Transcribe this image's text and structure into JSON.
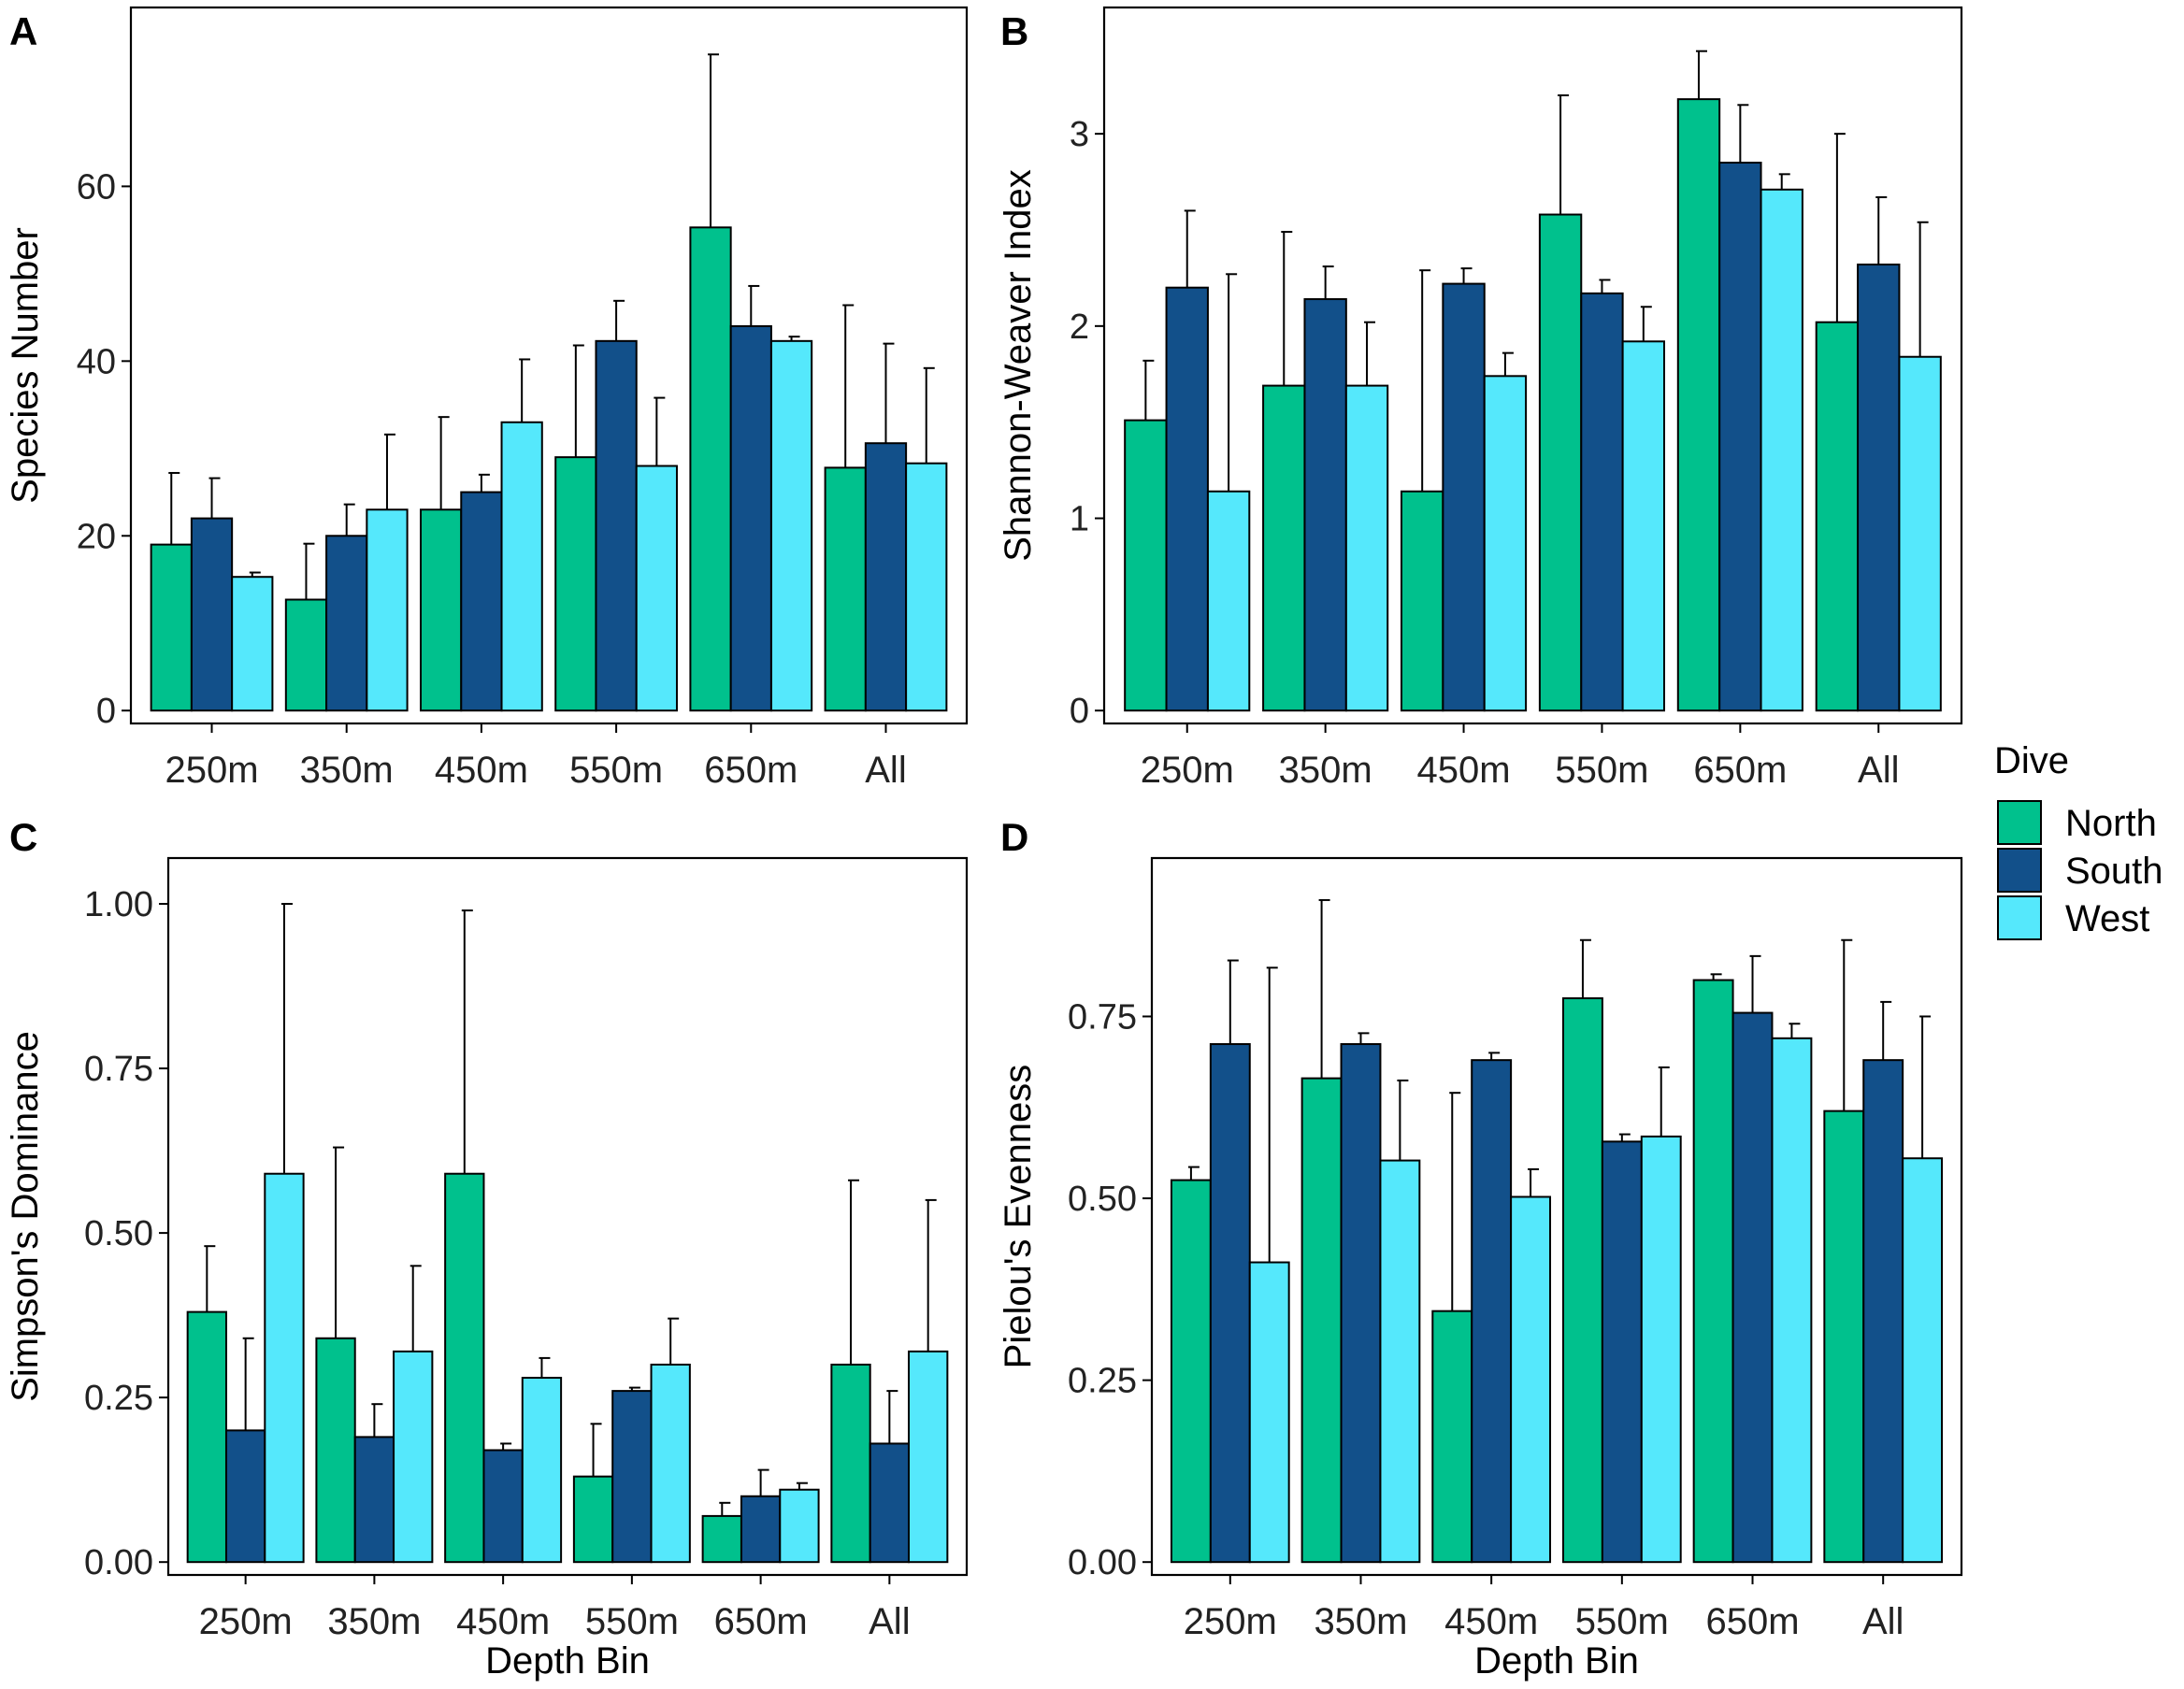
{
  "figure": {
    "legend": {
      "title": "Dive",
      "items": [
        {
          "label": "North",
          "color": "#00C18D"
        },
        {
          "label": "South",
          "color": "#12508A"
        },
        {
          "label": "West",
          "color": "#55E8FC"
        }
      ]
    }
  },
  "chart_data": [
    {
      "id": "A",
      "type": "bar",
      "panel_label": "A",
      "xlabel": "",
      "ylabel": "Species Number",
      "ylim": [
        0,
        79
      ],
      "yticks": [
        0,
        20,
        40,
        60
      ],
      "ytick_labels": [
        "0",
        "20",
        "40",
        "60"
      ],
      "categories": [
        "250m",
        "350m",
        "450m",
        "550m",
        "650m",
        "All"
      ],
      "series": [
        {
          "name": "North",
          "values": [
            19,
            12.7,
            23,
            29,
            55.3,
            27.8
          ],
          "err": [
            8.2,
            6.4,
            10.6,
            12.8,
            19.8,
            18.6
          ]
        },
        {
          "name": "South",
          "values": [
            22,
            20,
            25,
            42.3,
            44,
            30.6
          ],
          "err": [
            4.6,
            3.6,
            2,
            4.6,
            4.6,
            11.4
          ]
        },
        {
          "name": "West",
          "values": [
            15.3,
            23,
            33,
            28,
            42.3,
            28.3
          ],
          "err": [
            0.5,
            8.6,
            7.2,
            7.8,
            0.5,
            10.9
          ]
        }
      ]
    },
    {
      "id": "B",
      "type": "bar",
      "panel_label": "B",
      "xlabel": "",
      "ylabel": "Shannon-Weaver Index",
      "ylim": [
        0,
        3.59
      ],
      "yticks": [
        0,
        1,
        2,
        3
      ],
      "ytick_labels": [
        "0",
        "1",
        "2",
        "3"
      ],
      "categories": [
        "250m",
        "350m",
        "450m",
        "550m",
        "650m",
        "All"
      ],
      "series": [
        {
          "name": "North",
          "values": [
            1.51,
            1.69,
            1.14,
            2.58,
            3.18,
            2.02
          ],
          "err": [
            0.31,
            0.8,
            1.15,
            0.62,
            0.25,
            0.98
          ]
        },
        {
          "name": "South",
          "values": [
            2.2,
            2.14,
            2.22,
            2.17,
            2.85,
            2.32
          ],
          "err": [
            0.4,
            0.17,
            0.08,
            0.07,
            0.3,
            0.35
          ]
        },
        {
          "name": "West",
          "values": [
            1.14,
            1.69,
            1.74,
            1.92,
            2.71,
            1.84
          ],
          "err": [
            1.13,
            0.33,
            0.12,
            0.18,
            0.08,
            0.7
          ]
        }
      ]
    },
    {
      "id": "C",
      "type": "bar",
      "panel_label": "C",
      "xlabel": "Depth Bin",
      "ylabel": "Simpson's Dominance",
      "ylim": [
        0,
        1.05
      ],
      "yticks": [
        0,
        0.25,
        0.5,
        0.75,
        1
      ],
      "ytick_labels": [
        "0.00",
        "0.25",
        "0.50",
        "0.75",
        "1.00"
      ],
      "categories": [
        "250m",
        "350m",
        "450m",
        "550m",
        "650m",
        "All"
      ],
      "series": [
        {
          "name": "North",
          "values": [
            0.38,
            0.34,
            0.59,
            0.13,
            0.07,
            0.3
          ],
          "err": [
            0.1,
            0.29,
            0.4,
            0.08,
            0.02,
            0.28
          ]
        },
        {
          "name": "South",
          "values": [
            0.2,
            0.19,
            0.17,
            0.26,
            0.1,
            0.18
          ],
          "err": [
            0.14,
            0.05,
            0.01,
            0.005,
            0.04,
            0.08
          ]
        },
        {
          "name": "West",
          "values": [
            0.59,
            0.32,
            0.28,
            0.3,
            0.11,
            0.32
          ],
          "err": [
            0.41,
            0.13,
            0.03,
            0.07,
            0.01,
            0.23
          ]
        }
      ]
    },
    {
      "id": "D",
      "type": "bar",
      "panel_label": "D",
      "xlabel": "Depth Bin",
      "ylabel": "Pielou's Evenness",
      "ylim": [
        0,
        0.95
      ],
      "yticks": [
        0,
        0.25,
        0.5,
        0.75
      ],
      "ytick_labels": [
        "0.00",
        "0.25",
        "0.50",
        "0.75"
      ],
      "categories": [
        "250m",
        "350m",
        "450m",
        "550m",
        "650m",
        "All"
      ],
      "series": [
        {
          "name": "North",
          "values": [
            0.525,
            0.665,
            0.345,
            0.775,
            0.8,
            0.62
          ],
          "err": [
            0.018,
            0.245,
            0.3,
            0.08,
            0.008,
            0.235
          ]
        },
        {
          "name": "South",
          "values": [
            0.712,
            0.712,
            0.69,
            0.578,
            0.755,
            0.69
          ],
          "err": [
            0.115,
            0.015,
            0.01,
            0.01,
            0.078,
            0.08
          ]
        },
        {
          "name": "West",
          "values": [
            0.412,
            0.552,
            0.502,
            0.585,
            0.72,
            0.555
          ],
          "err": [
            0.405,
            0.11,
            0.038,
            0.095,
            0.02,
            0.195
          ]
        }
      ]
    }
  ]
}
